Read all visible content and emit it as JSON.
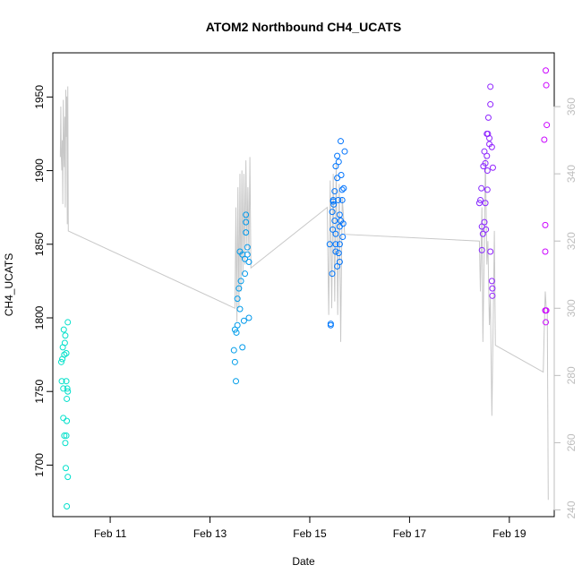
{
  "chart_data": {
    "type": "scatter",
    "title": "ATOM2 Northbound CH4_UCATS",
    "xlabel": "Date",
    "ylabel": "CH4_UCATS",
    "x_axis": {
      "unit": "days in February (year unlabeled)",
      "range": [
        9.85,
        19.9
      ],
      "ticks": [
        11,
        13,
        15,
        17,
        19
      ],
      "tick_labels": [
        "Feb 11",
        "Feb 13",
        "Feb 15",
        "Feb 17",
        "Feb 19"
      ]
    },
    "y_axis_left": {
      "range": [
        1665,
        1980
      ],
      "ticks": [
        1700,
        1750,
        1800,
        1850,
        1900,
        1950
      ],
      "tick_labels": [
        "1700",
        "1750",
        "1800",
        "1850",
        "1900",
        "1950"
      ]
    },
    "y_axis_right": {
      "range": [
        238,
        376
      ],
      "ticks": [
        240,
        260,
        280,
        300,
        320,
        340,
        360
      ],
      "tick_labels": [
        "240",
        "260",
        "280",
        "300",
        "320",
        "340",
        "360"
      ],
      "color": "#bdbdbd"
    },
    "grid": false,
    "legend": "none",
    "series": [
      {
        "role": "scatter points, left axis, hue varies with time (teal to violet)",
        "color_start": "#00e5c8",
        "color_end": "#d400ff",
        "points": [
          [
            10.02,
            1770
          ],
          [
            10.04,
            1772
          ],
          [
            10.05,
            1780
          ],
          [
            10.03,
            1757
          ],
          [
            10.06,
            1752
          ],
          [
            10.07,
            1792
          ],
          [
            10.08,
            1775
          ],
          [
            10.09,
            1783
          ],
          [
            10.1,
            1788
          ],
          [
            10.06,
            1732
          ],
          [
            10.08,
            1720
          ],
          [
            10.1,
            1715
          ],
          [
            10.12,
            1720
          ],
          [
            10.11,
            1698
          ],
          [
            10.13,
            1730
          ],
          [
            10.12,
            1757
          ],
          [
            10.14,
            1752
          ],
          [
            10.15,
            1750
          ],
          [
            10.13,
            1745
          ],
          [
            10.15,
            1692
          ],
          [
            10.13,
            1672
          ],
          [
            10.12,
            1776
          ],
          [
            10.15,
            1797
          ],
          [
            13.48,
            1778
          ],
          [
            13.5,
            1770
          ],
          [
            13.5,
            1792
          ],
          [
            13.52,
            1757
          ],
          [
            13.53,
            1790
          ],
          [
            13.55,
            1795
          ],
          [
            13.55,
            1813
          ],
          [
            13.58,
            1820
          ],
          [
            13.6,
            1806
          ],
          [
            13.6,
            1845
          ],
          [
            13.62,
            1825
          ],
          [
            13.65,
            1843
          ],
          [
            13.65,
            1780
          ],
          [
            13.68,
            1798
          ],
          [
            13.7,
            1830
          ],
          [
            13.7,
            1840
          ],
          [
            13.72,
            1858
          ],
          [
            13.72,
            1865
          ],
          [
            13.72,
            1870
          ],
          [
            13.75,
            1843
          ],
          [
            13.75,
            1848
          ],
          [
            13.78,
            1838
          ],
          [
            13.78,
            1800
          ],
          [
            15.4,
            1850
          ],
          [
            15.42,
            1795
          ],
          [
            15.42,
            1796
          ],
          [
            15.45,
            1830
          ],
          [
            15.45,
            1872
          ],
          [
            15.46,
            1860
          ],
          [
            15.47,
            1880
          ],
          [
            15.48,
            1877
          ],
          [
            15.5,
            1886
          ],
          [
            15.52,
            1850
          ],
          [
            15.52,
            1857
          ],
          [
            15.52,
            1903
          ],
          [
            15.55,
            1910
          ],
          [
            15.55,
            1895
          ],
          [
            15.57,
            1880
          ],
          [
            15.58,
            1906
          ],
          [
            15.6,
            1838
          ],
          [
            15.6,
            1850
          ],
          [
            15.6,
            1862
          ],
          [
            15.62,
            1866
          ],
          [
            15.62,
            1920
          ],
          [
            15.63,
            1897
          ],
          [
            15.65,
            1887
          ],
          [
            15.65,
            1880
          ],
          [
            15.66,
            1855
          ],
          [
            15.67,
            1864
          ],
          [
            15.68,
            1888
          ],
          [
            15.7,
            1913
          ],
          [
            15.5,
            1866
          ],
          [
            15.52,
            1845
          ],
          [
            15.6,
            1870
          ],
          [
            15.58,
            1844
          ],
          [
            15.47,
            1879
          ],
          [
            15.55,
            1835
          ],
          [
            18.4,
            1878
          ],
          [
            18.42,
            1880
          ],
          [
            18.44,
            1888
          ],
          [
            18.45,
            1862
          ],
          [
            18.45,
            1846
          ],
          [
            18.47,
            1857
          ],
          [
            18.48,
            1903
          ],
          [
            18.5,
            1913
          ],
          [
            18.52,
            1905
          ],
          [
            18.55,
            1925
          ],
          [
            18.55,
            1910
          ],
          [
            18.56,
            1900
          ],
          [
            18.56,
            1887
          ],
          [
            18.57,
            1925
          ],
          [
            18.58,
            1936
          ],
          [
            18.6,
            1922
          ],
          [
            18.6,
            1918
          ],
          [
            18.62,
            1957
          ],
          [
            18.62,
            1945
          ],
          [
            18.65,
            1916
          ],
          [
            18.67,
            1902
          ],
          [
            18.5,
            1865
          ],
          [
            18.52,
            1878
          ],
          [
            18.53,
            1860
          ],
          [
            18.62,
            1845
          ],
          [
            18.65,
            1825
          ],
          [
            18.66,
            1820
          ],
          [
            18.66,
            1815
          ],
          [
            19.7,
            1921
          ],
          [
            19.73,
            1968
          ],
          [
            19.74,
            1958
          ],
          [
            19.75,
            1931
          ],
          [
            19.72,
            1863
          ],
          [
            19.72,
            1845
          ],
          [
            19.72,
            1805
          ],
          [
            19.74,
            1805
          ],
          [
            19.73,
            1797
          ]
        ]
      },
      {
        "role": "continuous trace, right axis",
        "color": "#c8c8c8",
        "points": [
          [
            10.0,
            345
          ],
          [
            10.01,
            360
          ],
          [
            10.02,
            345
          ],
          [
            10.03,
            341
          ],
          [
            10.04,
            350
          ],
          [
            10.05,
            331
          ],
          [
            10.06,
            362
          ],
          [
            10.07,
            348
          ],
          [
            10.08,
            342
          ],
          [
            10.09,
            357
          ],
          [
            10.1,
            330
          ],
          [
            10.11,
            365
          ],
          [
            10.12,
            351
          ],
          [
            10.13,
            363
          ],
          [
            10.14,
            325
          ],
          [
            10.15,
            366
          ],
          [
            10.16,
            323
          ],
          [
            13.5,
            300
          ],
          [
            13.52,
            330
          ],
          [
            13.54,
            296
          ],
          [
            13.56,
            336
          ],
          [
            13.58,
            300
          ],
          [
            13.6,
            340
          ],
          [
            13.62,
            305
          ],
          [
            13.64,
            341
          ],
          [
            13.66,
            310
          ],
          [
            13.68,
            340
          ],
          [
            13.7,
            313
          ],
          [
            13.72,
            344
          ],
          [
            13.74,
            318
          ],
          [
            13.76,
            336
          ],
          [
            13.78,
            316
          ],
          [
            13.8,
            345
          ],
          [
            13.82,
            312
          ],
          [
            15.35,
            330
          ],
          [
            15.38,
            298
          ],
          [
            15.41,
            338
          ],
          [
            15.44,
            300
          ],
          [
            15.47,
            340
          ],
          [
            15.5,
            302
          ],
          [
            15.53,
            343
          ],
          [
            15.56,
            298
          ],
          [
            15.59,
            337
          ],
          [
            15.62,
            290
          ],
          [
            15.65,
            333
          ],
          [
            15.7,
            322
          ],
          [
            18.4,
            320
          ],
          [
            18.42,
            305
          ],
          [
            18.45,
            330
          ],
          [
            18.47,
            290
          ],
          [
            18.5,
            320
          ],
          [
            18.52,
            345
          ],
          [
            18.55,
            313
          ],
          [
            18.57,
            320
          ],
          [
            18.6,
            295
          ],
          [
            18.62,
            303
          ],
          [
            18.65,
            268
          ],
          [
            18.68,
            300
          ],
          [
            18.7,
            323
          ],
          [
            18.72,
            289
          ],
          [
            19.68,
            281
          ],
          [
            19.7,
            294
          ],
          [
            19.72,
            305
          ],
          [
            19.74,
            300
          ],
          [
            19.76,
            300
          ],
          [
            19.78,
            243
          ]
        ]
      }
    ]
  }
}
